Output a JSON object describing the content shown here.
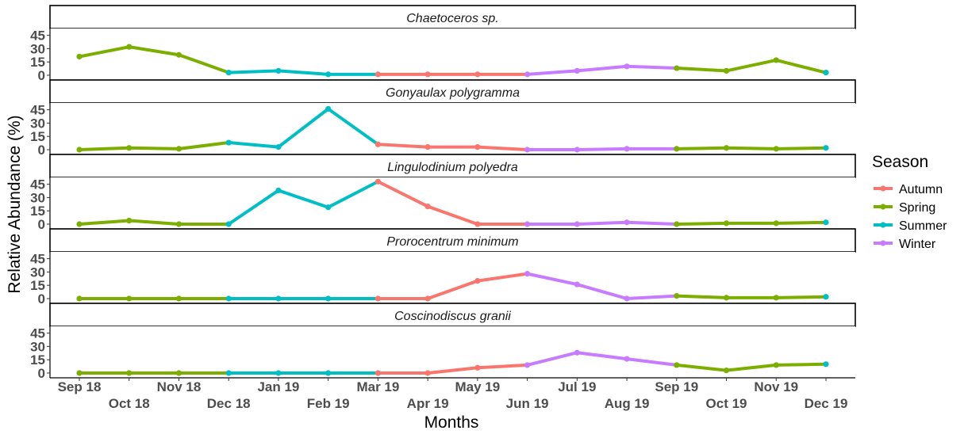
{
  "chart_data": {
    "type": "line",
    "xlabel": "Months",
    "ylabel": "Relative Abundance (%)",
    "x": [
      "Sep 18",
      "Oct 18",
      "Nov 18",
      "Dec 18",
      "Jan 19",
      "Feb 19",
      "Mar 19",
      "Apr 19",
      "May 19",
      "Jun 19",
      "Jul 19",
      "Aug 19",
      "Sep 19",
      "Oct 19",
      "Nov 19",
      "Dec 19"
    ],
    "x_tick_labels_top": [
      "Sep 18",
      "Nov 18",
      "Jan 19",
      "Mar 19",
      "May 19",
      "Jul 19",
      "Sep 19",
      "Nov 19"
    ],
    "x_tick_labels_bottom": [
      "Oct 18",
      "Dec 18",
      "Feb 19",
      "Apr 19",
      "Jun 19",
      "Aug 19",
      "Oct 19",
      "Dec 19"
    ],
    "y_ticks": [
      "0",
      "15",
      "30",
      "45"
    ],
    "ylim": [
      0,
      50
    ],
    "legend": {
      "title": "Season",
      "position": "right",
      "entries": [
        {
          "label": "Autumn",
          "color": "#F8766D"
        },
        {
          "label": "Spring",
          "color": "#7CAE00"
        },
        {
          "label": "Summer",
          "color": "#00BFC4"
        },
        {
          "label": "Winter",
          "color": "#C77CFF"
        }
      ]
    },
    "season_by_month": [
      "Spring",
      "Spring",
      "Spring",
      "Summer",
      "Summer",
      "Summer",
      "Autumn",
      "Autumn",
      "Autumn",
      "Winter",
      "Winter",
      "Winter",
      "Spring",
      "Spring",
      "Spring",
      "Summer"
    ],
    "panels": [
      {
        "name": "Chaetoceros sp.",
        "values": [
          21,
          32,
          23,
          3,
          5,
          1,
          1,
          1,
          1,
          1,
          5,
          10,
          8,
          5,
          17,
          3
        ]
      },
      {
        "name": "Gonyaulax polygramma",
        "values": [
          0,
          2,
          1,
          8,
          3,
          46,
          6,
          3,
          3,
          0,
          0,
          1,
          1,
          2,
          1,
          2
        ]
      },
      {
        "name": "Lingulodinium polyedra",
        "values": [
          0,
          4,
          0,
          0,
          38,
          19,
          48,
          20,
          0,
          0,
          0,
          2,
          0,
          1,
          1,
          2
        ]
      },
      {
        "name": "Prorocentrum minimum",
        "values": [
          0,
          0,
          0,
          0,
          0,
          0,
          0,
          0,
          20,
          28,
          16,
          0,
          3,
          1,
          1,
          2
        ]
      },
      {
        "name": "Coscinodiscus granii",
        "values": [
          0,
          0,
          0,
          0,
          0,
          0,
          0,
          0,
          6,
          9,
          23,
          16,
          9,
          3,
          9,
          10
        ]
      }
    ]
  }
}
